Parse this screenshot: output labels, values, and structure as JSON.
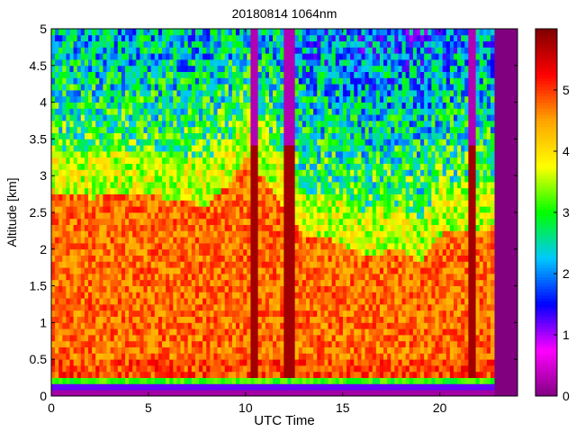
{
  "chart_data": {
    "type": "heatmap",
    "title": "20180814 1064nm",
    "xlabel": "UTC Time",
    "ylabel": "Altitude [km]",
    "xlim": [
      0,
      24
    ],
    "ylim": [
      0,
      5
    ],
    "x_ticks": [
      0,
      5,
      10,
      15,
      20
    ],
    "y_ticks": [
      0,
      0.5,
      1,
      1.5,
      2,
      2.5,
      3,
      3.5,
      4,
      4.5,
      5
    ],
    "x_tick_labels": [
      "0",
      "5",
      "10",
      "15",
      "20"
    ],
    "y_tick_labels": [
      "0",
      "0.5",
      "1",
      "1.5",
      "2",
      "2.5",
      "3",
      "3.5",
      "4",
      "4.5",
      "5"
    ],
    "colorbar": {
      "range": [
        0,
        6
      ],
      "ticks": [
        0,
        1,
        2,
        3,
        4,
        5
      ],
      "tick_labels": [
        "0",
        "1",
        "2",
        "3",
        "4",
        "5"
      ],
      "colormap": [
        "#800080",
        "#ff00ff",
        "#0000ff",
        "#00c8ff",
        "#00ff00",
        "#ffff00",
        "#ffa500",
        "#ff0000",
        "#800000"
      ]
    },
    "data_end_time": 22.8,
    "no_data_color": "#800080",
    "layers": {
      "boundary_layer_top_km": [
        [
          0,
          3.1
        ],
        [
          2,
          3.0
        ],
        [
          4,
          3.05
        ],
        [
          6,
          3.0
        ],
        [
          8,
          2.9
        ],
        [
          9.5,
          3.3
        ],
        [
          10,
          3.6
        ],
        [
          13,
          2.5
        ],
        [
          15,
          2.4
        ],
        [
          16,
          2.2
        ],
        [
          18,
          2.3
        ],
        [
          19,
          2.1
        ],
        [
          20,
          2.5
        ],
        [
          22.8,
          2.6
        ]
      ],
      "cloud_segments": [
        {
          "start": 10.3,
          "end": 10.7
        },
        {
          "start": 11.9,
          "end": 12.5
        },
        {
          "start": 21.4,
          "end": 21.9
        }
      ]
    }
  }
}
